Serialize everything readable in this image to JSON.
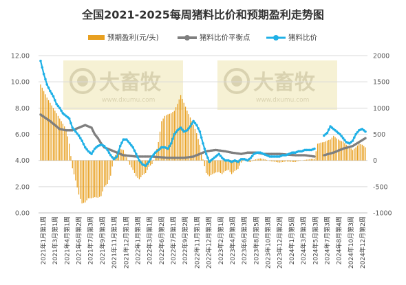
{
  "chart_data": {
    "type": "bar+line",
    "title": "全国2021-2025每周猪料比价和预期盈利走势图",
    "legend": [
      {
        "name": "预期盈利(元/头)",
        "kind": "bar",
        "color": "#e8a020"
      },
      {
        "name": "猪料比价平衡点",
        "kind": "line",
        "color": "#7f7f7f"
      },
      {
        "name": "猪料比价",
        "kind": "line",
        "color": "#1fb0e6"
      }
    ],
    "legend_position": "top",
    "watermark": "大畜牧 www.dxumu.com",
    "y_left": {
      "ylim": [
        0,
        12
      ],
      "ticks": [
        "0.00",
        "2.00",
        "4.00",
        "6.00",
        "8.00",
        "10.00",
        "12.00"
      ]
    },
    "y_right": {
      "ylim": [
        -1000,
        2000
      ],
      "ticks": [
        "-1000",
        "-500",
        "0",
        "500",
        "1000",
        "1500",
        "2000"
      ]
    },
    "x_tick_labels": [
      "2021年1月第1周",
      "2021年3月第1周",
      "2021年4月第1周",
      "2021年6月第2周",
      "2021年7月第3周",
      "2021年9月第3周",
      "2021年11月第1周",
      "2021年12月第1周",
      "2022年1月第3周",
      "2022年3月第1周",
      "2022年6月第2周",
      "2022年7月第1周",
      "2022年9月第2周",
      "2022年11月第1周",
      "2022年12月第3周",
      "2023年2月第1周",
      "2023年4月第3周",
      "2023年6月第3周",
      "2023年8月第5周",
      "2023年10月第3周",
      "2023年12月第2周",
      "2024年1月第5周",
      "2024年3月第3周",
      "2024年5月第3周",
      "2024年7月第3周",
      "2024年8月第4周",
      "2024年10月第3周",
      "2024年12月第2周"
    ],
    "ratio_knots": [
      [
        0,
        11.6
      ],
      [
        2,
        10.6
      ],
      [
        4,
        9.8
      ],
      [
        6,
        9.3
      ],
      [
        8,
        8.9
      ],
      [
        10,
        8.3
      ],
      [
        12,
        8.0
      ],
      [
        14,
        7.6
      ],
      [
        16,
        7.4
      ],
      [
        18,
        7.2
      ],
      [
        20,
        6.5
      ],
      [
        22,
        6.2
      ],
      [
        24,
        5.9
      ],
      [
        26,
        5.5
      ],
      [
        28,
        5.0
      ],
      [
        30,
        4.7
      ],
      [
        32,
        4.5
      ],
      [
        34,
        4.9
      ],
      [
        36,
        5.1
      ],
      [
        38,
        5.2
      ],
      [
        40,
        5.1
      ],
      [
        42,
        4.8
      ],
      [
        44,
        4.4
      ],
      [
        46,
        4.1
      ],
      [
        48,
        4.3
      ],
      [
        50,
        5.1
      ],
      [
        52,
        5.6
      ],
      [
        54,
        5.6
      ],
      [
        56,
        5.3
      ],
      [
        58,
        5.0
      ],
      [
        60,
        4.5
      ],
      [
        62,
        4.0
      ],
      [
        64,
        3.7
      ],
      [
        66,
        3.6
      ],
      [
        68,
        3.9
      ],
      [
        70,
        4.3
      ],
      [
        72,
        4.6
      ],
      [
        74,
        4.8
      ],
      [
        76,
        5.0
      ],
      [
        78,
        5.0
      ],
      [
        80,
        4.9
      ],
      [
        82,
        5.3
      ],
      [
        84,
        6.0
      ],
      [
        86,
        6.3
      ],
      [
        88,
        6.5
      ],
      [
        90,
        6.2
      ],
      [
        92,
        6.3
      ],
      [
        94,
        6.6
      ],
      [
        96,
        7.0
      ],
      [
        98,
        6.7
      ],
      [
        100,
        6.2
      ],
      [
        102,
        5.3
      ],
      [
        104,
        4.5
      ],
      [
        106,
        3.9
      ],
      [
        108,
        4.1
      ],
      [
        110,
        4.3
      ],
      [
        112,
        4.5
      ],
      [
        114,
        4.2
      ],
      [
        116,
        4.0
      ],
      [
        118,
        4.0
      ],
      [
        120,
        3.9
      ],
      [
        122,
        4.0
      ],
      [
        124,
        3.9
      ],
      [
        126,
        4.1
      ],
      [
        128,
        4.1
      ],
      [
        130,
        4.0
      ],
      [
        132,
        4.2
      ],
      [
        134,
        4.5
      ],
      [
        136,
        4.6
      ],
      [
        138,
        4.6
      ],
      [
        140,
        4.5
      ],
      [
        142,
        4.4
      ],
      [
        144,
        4.3
      ],
      [
        146,
        4.3
      ],
      [
        148,
        4.3
      ],
      [
        150,
        4.3
      ],
      [
        152,
        4.4
      ],
      [
        154,
        4.4
      ],
      [
        156,
        4.5
      ],
      [
        158,
        4.6
      ],
      [
        160,
        4.6
      ],
      [
        162,
        4.7
      ],
      [
        164,
        4.7
      ],
      [
        166,
        4.8
      ],
      [
        168,
        4.8
      ],
      [
        170,
        4.8
      ],
      [
        172,
        4.9
      ],
      [
        174,
        5.3
      ],
      [
        176,
        5.6
      ],
      [
        178,
        5.9
      ],
      [
        180,
        6.1
      ],
      [
        182,
        6.6
      ],
      [
        184,
        6.4
      ],
      [
        186,
        6.2
      ],
      [
        188,
        6.0
      ],
      [
        190,
        5.7
      ],
      [
        192,
        5.4
      ],
      [
        194,
        5.3
      ],
      [
        196,
        5.5
      ],
      [
        198,
        6.0
      ],
      [
        200,
        6.3
      ],
      [
        202,
        6.4
      ],
      [
        204,
        6.2
      ]
    ],
    "ratio_gaps": [
      [
        172,
        178
      ]
    ],
    "breakeven_knots": [
      [
        0,
        7.5
      ],
      [
        6,
        7.0
      ],
      [
        12,
        6.4
      ],
      [
        16,
        6.3
      ],
      [
        20,
        6.3
      ],
      [
        24,
        6.5
      ],
      [
        28,
        6.7
      ],
      [
        32,
        6.5
      ],
      [
        34,
        6.0
      ],
      [
        36,
        5.7
      ],
      [
        38,
        5.3
      ],
      [
        40,
        5.0
      ],
      [
        44,
        4.8
      ],
      [
        48,
        4.6
      ],
      [
        52,
        4.4
      ],
      [
        60,
        4.3
      ],
      [
        70,
        4.3
      ],
      [
        80,
        4.2
      ],
      [
        90,
        4.2
      ],
      [
        96,
        4.3
      ],
      [
        100,
        4.5
      ],
      [
        104,
        4.7
      ],
      [
        110,
        4.8
      ],
      [
        116,
        4.7
      ],
      [
        120,
        4.6
      ],
      [
        126,
        4.5
      ],
      [
        130,
        4.6
      ],
      [
        136,
        4.6
      ],
      [
        140,
        4.5
      ],
      [
        150,
        4.5
      ],
      [
        160,
        4.4
      ],
      [
        166,
        4.4
      ],
      [
        172,
        4.3
      ],
      [
        178,
        4.4
      ],
      [
        184,
        4.6
      ],
      [
        190,
        4.9
      ],
      [
        196,
        5.1
      ],
      [
        200,
        5.4
      ],
      [
        204,
        5.7
      ]
    ],
    "breakeven_gaps": [
      [
        172,
        178
      ]
    ],
    "profit_knots": [
      [
        0,
        1450
      ],
      [
        4,
        1200
      ],
      [
        8,
        1000
      ],
      [
        12,
        800
      ],
      [
        16,
        600
      ],
      [
        18,
        320
      ],
      [
        20,
        -150
      ],
      [
        22,
        -380
      ],
      [
        24,
        -650
      ],
      [
        26,
        -820
      ],
      [
        28,
        -800
      ],
      [
        30,
        -720
      ],
      [
        32,
        -720
      ],
      [
        34,
        -700
      ],
      [
        36,
        -710
      ],
      [
        38,
        -680
      ],
      [
        40,
        -500
      ],
      [
        42,
        -450
      ],
      [
        44,
        -290
      ],
      [
        46,
        60
      ],
      [
        48,
        150
      ],
      [
        50,
        220
      ],
      [
        52,
        200
      ],
      [
        54,
        60
      ],
      [
        56,
        -80
      ],
      [
        58,
        -180
      ],
      [
        60,
        -300
      ],
      [
        62,
        -360
      ],
      [
        64,
        -280
      ],
      [
        66,
        -240
      ],
      [
        68,
        -120
      ],
      [
        70,
        -70
      ],
      [
        72,
        90
      ],
      [
        74,
        350
      ],
      [
        76,
        750
      ],
      [
        78,
        850
      ],
      [
        80,
        880
      ],
      [
        82,
        900
      ],
      [
        84,
        950
      ],
      [
        86,
        1080
      ],
      [
        88,
        1250
      ],
      [
        90,
        1100
      ],
      [
        92,
        950
      ],
      [
        94,
        820
      ],
      [
        96,
        680
      ],
      [
        98,
        520
      ],
      [
        100,
        300
      ],
      [
        102,
        20
      ],
      [
        104,
        -240
      ],
      [
        106,
        -300
      ],
      [
        108,
        -260
      ],
      [
        110,
        -230
      ],
      [
        112,
        -220
      ],
      [
        114,
        -260
      ],
      [
        116,
        -200
      ],
      [
        118,
        -180
      ],
      [
        120,
        -260
      ],
      [
        122,
        -200
      ],
      [
        124,
        -160
      ],
      [
        126,
        -40
      ],
      [
        128,
        20
      ],
      [
        130,
        -20
      ],
      [
        132,
        -30
      ],
      [
        134,
        10
      ],
      [
        136,
        30
      ],
      [
        138,
        40
      ],
      [
        140,
        30
      ],
      [
        142,
        10
      ],
      [
        144,
        -10
      ],
      [
        146,
        -20
      ],
      [
        148,
        -30
      ],
      [
        150,
        -40
      ],
      [
        152,
        -30
      ],
      [
        154,
        -20
      ],
      [
        156,
        -20
      ],
      [
        158,
        -30
      ],
      [
        160,
        -30
      ],
      [
        162,
        -10
      ],
      [
        164,
        0
      ],
      [
        166,
        10
      ],
      [
        168,
        20
      ],
      [
        170,
        30
      ],
      [
        172,
        30
      ],
      [
        174,
        320
      ],
      [
        176,
        340
      ],
      [
        178,
        350
      ],
      [
        180,
        380
      ],
      [
        182,
        400
      ],
      [
        184,
        470
      ],
      [
        186,
        420
      ],
      [
        188,
        380
      ],
      [
        190,
        360
      ],
      [
        192,
        300
      ],
      [
        194,
        260
      ],
      [
        196,
        200
      ],
      [
        198,
        250
      ],
      [
        200,
        320
      ],
      [
        202,
        300
      ],
      [
        204,
        250
      ]
    ]
  }
}
